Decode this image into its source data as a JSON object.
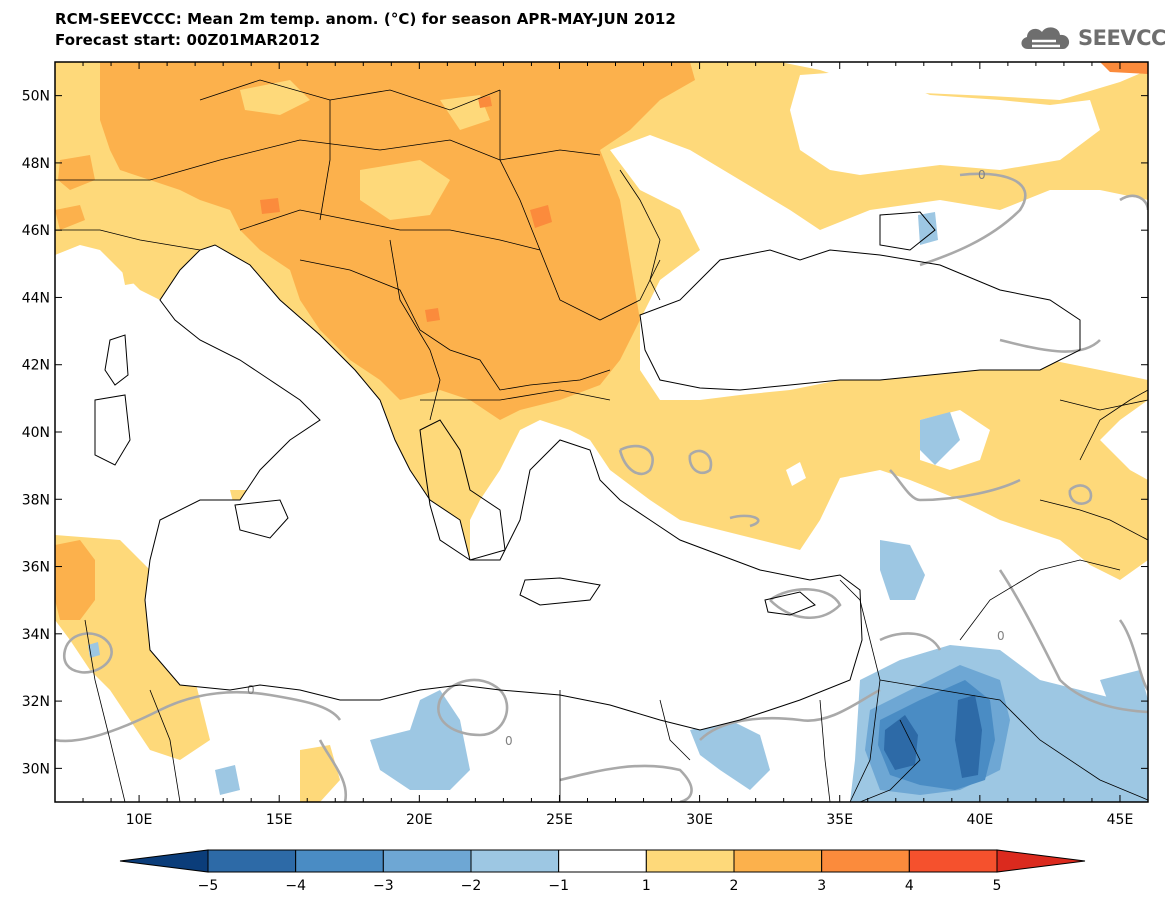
{
  "header": {
    "title_line1": "RCM-SEEVCCC: Mean 2m temp. anom. (°C) for season APR-MAY-JUN 2012",
    "title_line2": "Forecast start: 00Z01MAR2012"
  },
  "logo": {
    "text": "SEEVCCC",
    "icon": "cloud-logo-icon"
  },
  "map": {
    "lon_range": [
      7,
      46
    ],
    "lat_range": [
      29,
      51
    ],
    "lat_ticks": [
      "50N",
      "48N",
      "46N",
      "44N",
      "42N",
      "40N",
      "38N",
      "36N",
      "34N",
      "32N",
      "30N"
    ],
    "lon_ticks": [
      "10E",
      "15E",
      "20E",
      "25E",
      "30E",
      "35E",
      "40E",
      "45E"
    ],
    "contour_label": "0",
    "colors": {
      "land_border": "#000000",
      "contour": "#a9a9a9"
    }
  },
  "colorbar": {
    "labels": [
      "−5",
      "−4",
      "−3",
      "−2",
      "−1",
      "1",
      "2",
      "3",
      "4",
      "5"
    ],
    "colors": [
      "#0b3d7a",
      "#2d6aa7",
      "#4a8cc4",
      "#6ea7d4",
      "#9dc7e3",
      "#ffffff",
      "#fed97a",
      "#fcb14c",
      "#fb8b3c",
      "#f5512d",
      "#db2a1e"
    ]
  }
}
